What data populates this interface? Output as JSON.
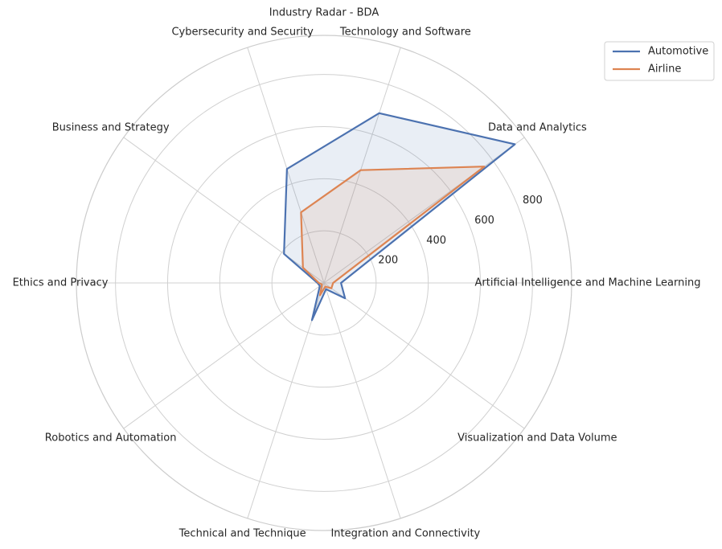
{
  "chart_data": {
    "type": "radar",
    "title": "Industry Radar - BDA",
    "categories": [
      "Artificial Intelligence and Machine Learning",
      "Data and Analytics",
      "Technology and Software",
      "Cybersecurity and Security",
      "Business and Strategy",
      "Ethics and Privacy",
      "Robotics and Automation",
      "Technical and Technique",
      "Integration and Connectivity",
      "Visualization and Data Volume"
    ],
    "series": [
      {
        "name": "Automotive",
        "color": "#4c72b0",
        "values": [
          65,
          905,
          685,
          460,
          190,
          25,
          20,
          150,
          25,
          100
        ]
      },
      {
        "name": "Airline",
        "color": "#dd8452",
        "values": [
          35,
          760,
          455,
          285,
          100,
          20,
          10,
          50,
          15,
          35
        ]
      }
    ],
    "ylim": [
      0,
      950
    ],
    "yticks": [
      200,
      400,
      600,
      800
    ],
    "grid": true,
    "legend": "upper right"
  }
}
